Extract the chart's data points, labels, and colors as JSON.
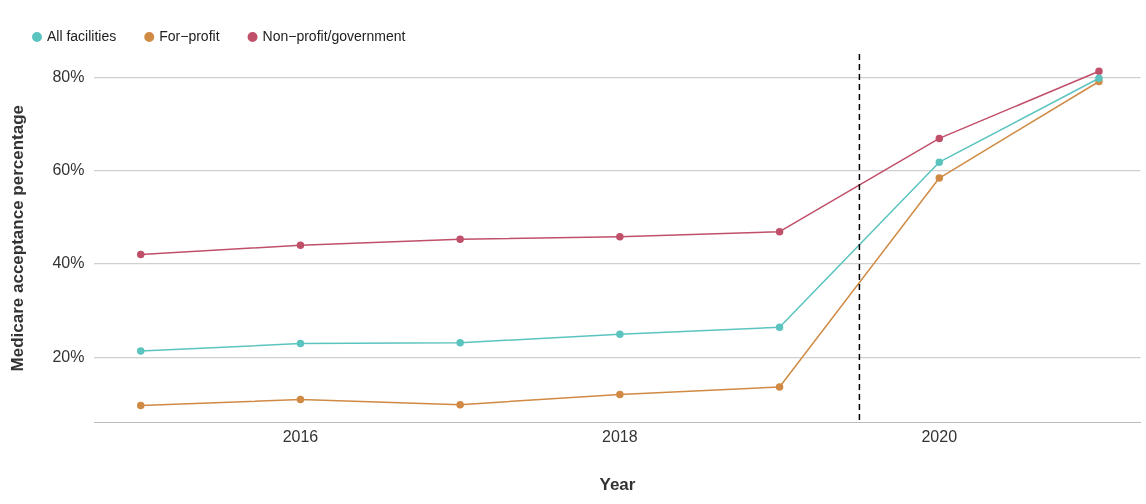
{
  "chart_data": {
    "type": "line",
    "xlabel": "Year",
    "ylabel": "Medicare acceptance percentage",
    "x": [
      2015,
      2016,
      2017,
      2018,
      2019,
      2020,
      2021
    ],
    "series": [
      {
        "name": "All facilities",
        "color": "#5bc4bf",
        "values": [
          21.3,
          22.9,
          23.1,
          24.9,
          26.4,
          61.8,
          79.8
        ]
      },
      {
        "name": "For−profit",
        "color": "#d08a44",
        "values": [
          9.6,
          10.9,
          9.8,
          12.0,
          13.6,
          58.4,
          79.1
        ]
      },
      {
        "name": "Non−profit/government",
        "color": "#c0506a",
        "values": [
          42.0,
          44.0,
          45.3,
          45.8,
          46.9,
          66.9,
          81.3
        ]
      }
    ],
    "xlim": [
      2014.71,
      2021.26
    ],
    "xticks": [
      2016,
      2018,
      2020
    ],
    "ylim": [
      6,
      85
    ],
    "yticks": [
      {
        "value": 20,
        "label": "20%"
      },
      {
        "value": 40,
        "label": "40%"
      },
      {
        "value": 60,
        "label": "60%"
      },
      {
        "value": 80,
        "label": "80%"
      }
    ],
    "ref_lines": [
      {
        "axis": "x",
        "value": 2019.5,
        "color": "#000000",
        "line_style": "dashed"
      }
    ],
    "grid": "y",
    "legend": "top left",
    "marker": "circle",
    "line_style": "solid"
  }
}
